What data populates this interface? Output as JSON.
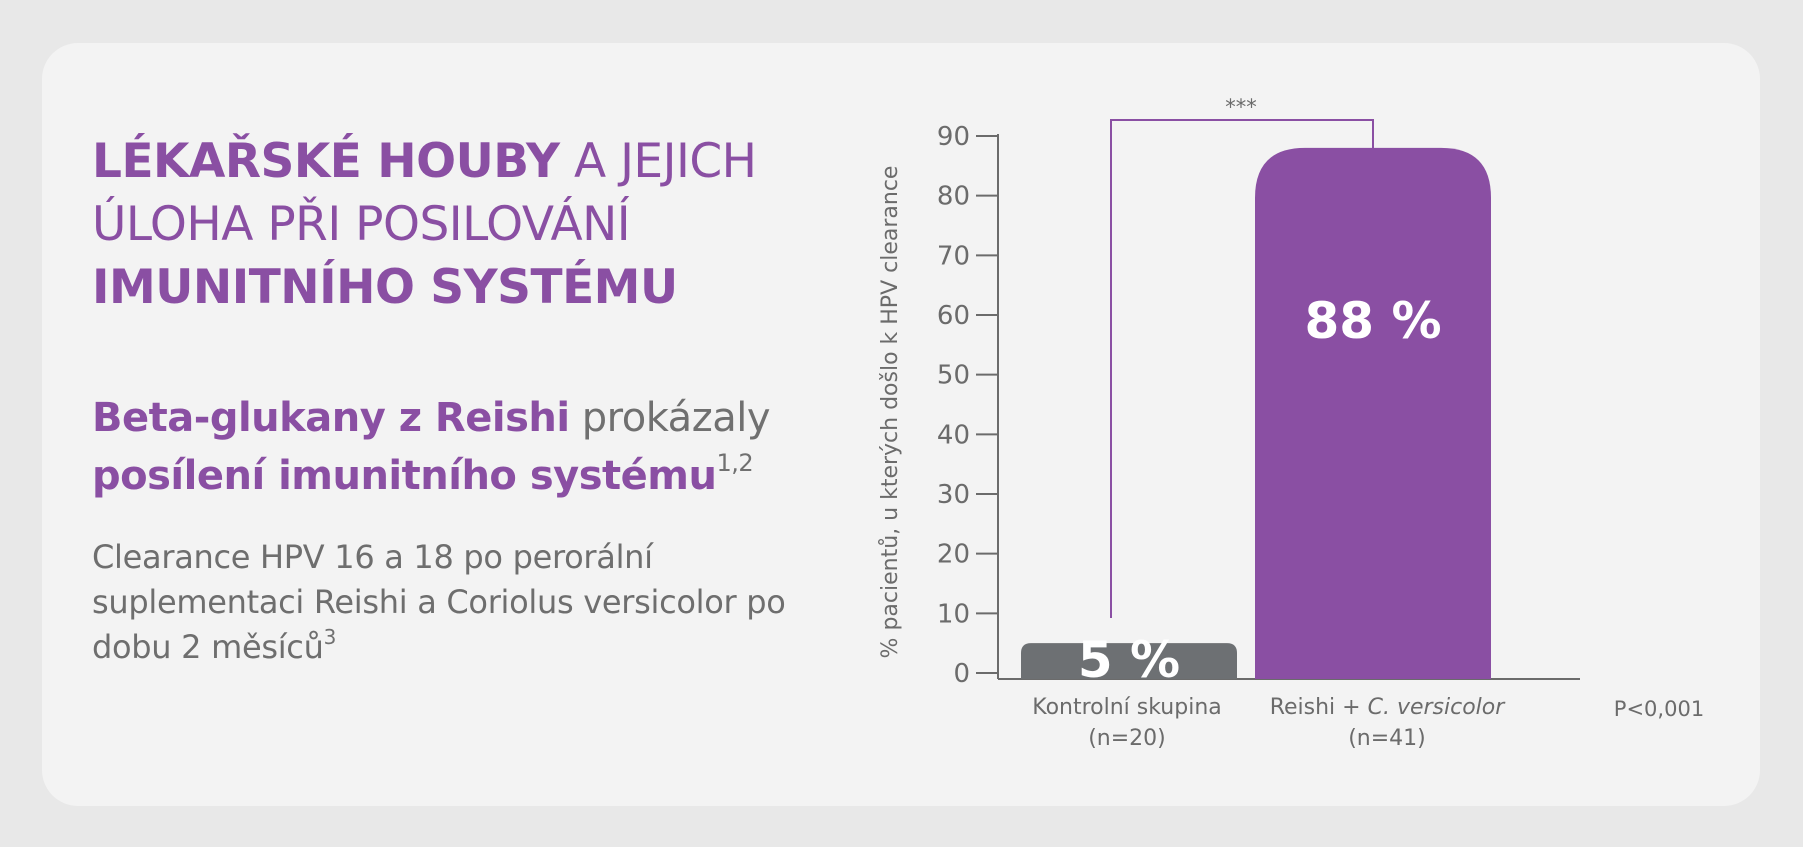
{
  "headline": {
    "part1": "LÉKAŘSKÉ HOUBY",
    "part2": " A JEJICH ÚLOHA PŘI POSILOVÁNÍ ",
    "part3": "IMUNITNÍHO SYSTÉMU"
  },
  "subhead": {
    "part1": "Beta-glukany z Reishi",
    "part2": " prokázaly ",
    "part3": "posílení imunitního systému",
    "sup": "1,2"
  },
  "description": {
    "text": "Clearance HPV 16 a 18 po perorální suplementaci Reishi a Coriolus versicolor po dobu 2 měsíců",
    "sup": "3"
  },
  "colors": {
    "purple": "#8a4fa3",
    "gray_bar": "#6d7073",
    "text_gray": "#6b6b6b"
  },
  "chart_data": {
    "type": "bar",
    "ylabel": "% pacientů, u kterých došlo k HPV clearance",
    "ylim": [
      0,
      90
    ],
    "yticks": [
      "0",
      "10",
      "20",
      "30",
      "40",
      "50",
      "60",
      "70",
      "80",
      "90"
    ],
    "categories": [
      {
        "line1_a": "Kontrolní skupina",
        "line1_b": "",
        "line2": "(n=20)"
      },
      {
        "line1_a": "Reishi + ",
        "line1_b": "C. versicolor",
        "line2": "(n=41)"
      }
    ],
    "values": [
      5,
      88
    ],
    "data_labels": [
      "5 %",
      "88 %"
    ],
    "bar_colors": [
      "#6d7073",
      "#8a4fa3"
    ],
    "significance": "***",
    "p_value": "P<0,001",
    "grid": false
  }
}
